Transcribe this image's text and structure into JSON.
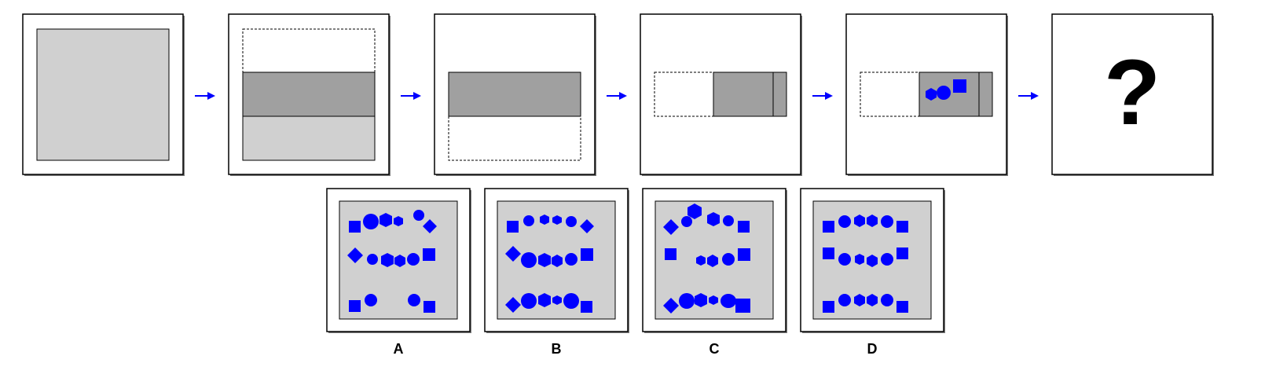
{
  "question_mark": "?",
  "colors": {
    "light_gray": "#d0d0d0",
    "dark_gray": "#a0a0a0",
    "accent_blue": "#0000ff",
    "border": "#000000"
  },
  "sequence": [
    {
      "step": 1,
      "content": "full-light-square"
    },
    {
      "step": 2,
      "content": "square-halved-dark-band"
    },
    {
      "step": 3,
      "content": "upper-half-kept"
    },
    {
      "step": 4,
      "content": "strip-folded-right"
    },
    {
      "step": 5,
      "content": "strip-with-three-punched-shapes",
      "shapes": [
        "hexagon-icon",
        "circle-icon",
        "square-icon"
      ]
    },
    {
      "step": 6,
      "content": "unknown-result"
    }
  ],
  "arrows": [
    "arrow-icon",
    "arrow-icon",
    "arrow-icon",
    "arrow-icon",
    "arrow-icon"
  ],
  "options": [
    {
      "label": "A"
    },
    {
      "label": "B"
    },
    {
      "label": "C"
    },
    {
      "label": "D"
    }
  ]
}
